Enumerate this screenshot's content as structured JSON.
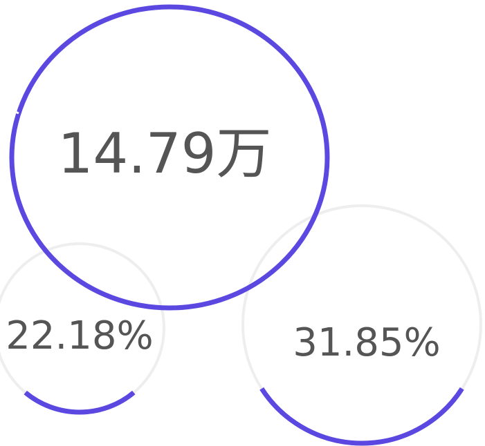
{
  "rings": [
    {
      "label": "14.79万"
    },
    {
      "label": "22.18%",
      "value": 22.18
    },
    {
      "label": "31.85%",
      "value": 31.85
    }
  ]
}
